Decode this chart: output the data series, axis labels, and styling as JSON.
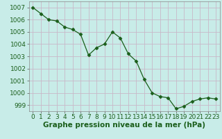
{
  "x": [
    0,
    1,
    2,
    3,
    4,
    5,
    6,
    7,
    8,
    9,
    10,
    11,
    12,
    13,
    14,
    15,
    16,
    17,
    18,
    19,
    20,
    21,
    22,
    23
  ],
  "y": [
    1007.0,
    1006.5,
    1006.0,
    1005.9,
    1005.4,
    1005.2,
    1004.8,
    1003.1,
    1003.7,
    1004.0,
    1005.0,
    1004.5,
    1003.2,
    1002.6,
    1001.1,
    1000.0,
    999.7,
    999.6,
    998.7,
    998.9,
    999.3,
    999.5,
    999.6,
    999.5
  ],
  "line_color": "#1a5e1a",
  "marker": "D",
  "marker_size": 2.5,
  "bg_color": "#c8ece8",
  "grid_color": "#c8b8c8",
  "ylabel_ticks": [
    999,
    1000,
    1001,
    1002,
    1003,
    1004,
    1005,
    1006,
    1007
  ],
  "xlabel": "Graphe pression niveau de la mer (hPa)",
  "ylim": [
    998.5,
    1007.5
  ],
  "xlim": [
    -0.5,
    23.5
  ],
  "tick_fontsize": 6.5,
  "xlabel_fontsize": 7.5
}
